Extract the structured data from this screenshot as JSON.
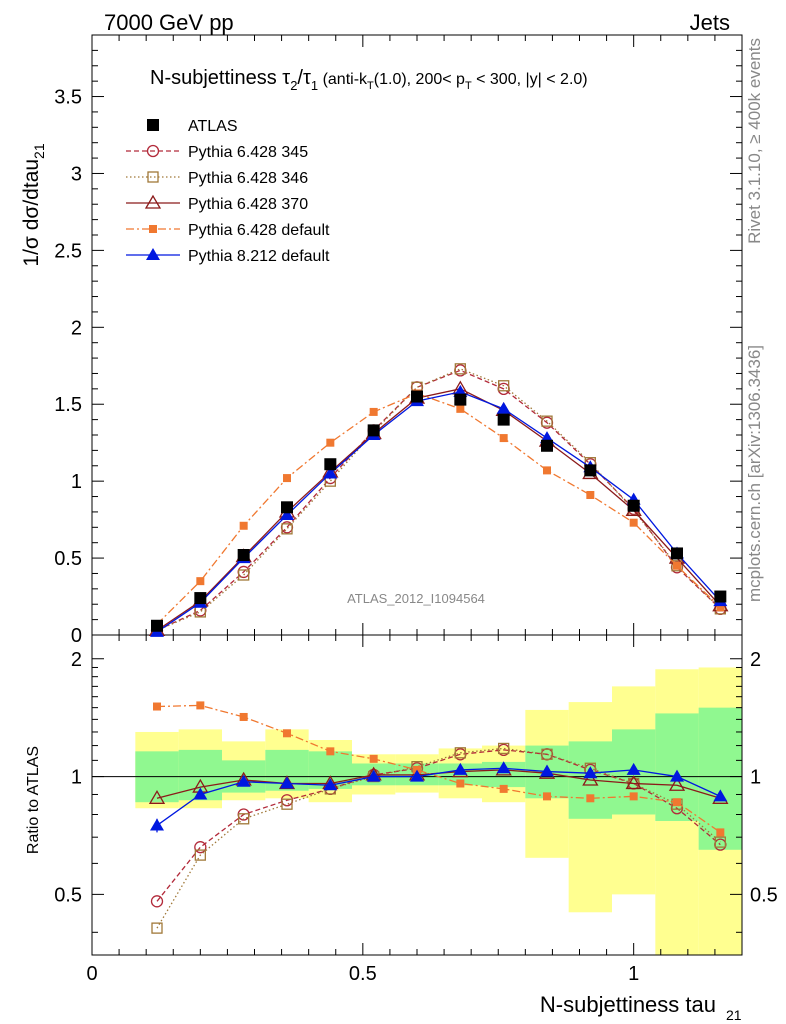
{
  "header": {
    "left": "7000 GeV pp",
    "right": "Jets"
  },
  "side_text": {
    "rivet": "Rivet 3.1.10, ≥ 400k events",
    "mcplots": "mcplots.cern.ch [arXiv:1306.3436]"
  },
  "watermark": "ATLAS_2012_I1094564",
  "title": {
    "main": "N-subjettiness τ",
    "sub2": "2",
    "slash": "/τ",
    "sub1": "1",
    "cond_a": " (anti-k",
    "cond_T": "T",
    "cond_b": "(1.0), 200< p",
    "cond_T2": "T",
    "cond_c": " < 300, |y| < 2.0)"
  },
  "axes": {
    "ylabel_top": "1/σ dσ/dtau",
    "ylabel_top_sub": "21",
    "ylabel_bottom": "Ratio to ATLAS",
    "xlabel": "N-subjettiness tau",
    "xlabel_sub": "21"
  },
  "colors": {
    "atlas": "#000000",
    "p345": "#b22a3a",
    "p346": "#a07838",
    "p370": "#8b1a1a",
    "p6def": "#f07830",
    "p8def": "#0018e0",
    "band_inner": "#90f890",
    "band_outer": "#ffff90"
  },
  "chart_data": {
    "type": "line",
    "title": "N-subjettiness τ2/τ1 (anti-kT(1.0), 200< pT < 300, |y| < 2.0)",
    "xlabel": "N-subjettiness tau21",
    "ylabel": "1/σ dσ/dtau21",
    "xlim": [
      0,
      1.2
    ],
    "ylim": [
      0,
      3.9
    ],
    "ratio_ylim": [
      0.35,
      2.3
    ],
    "x_ticks": [
      "0",
      "0.5",
      "1"
    ],
    "x_tick_values": [
      0,
      0.5,
      1
    ],
    "y_ticks": [
      "0",
      "0.5",
      "1",
      "1.5",
      "2",
      "2.5",
      "3",
      "3.5"
    ],
    "y_tick_values": [
      0,
      0.5,
      1,
      1.5,
      2,
      2.5,
      3,
      3.5
    ],
    "ratio_ticks": [
      "0.5",
      "1",
      "2"
    ],
    "ratio_tick_values": [
      0.5,
      1,
      2
    ],
    "x": [
      0.12,
      0.2,
      0.28,
      0.36,
      0.44,
      0.52,
      0.6,
      0.68,
      0.76,
      0.84,
      0.92,
      1.0,
      1.08,
      1.16
    ],
    "bin_edges": [
      0.08,
      0.16,
      0.24,
      0.32,
      0.4,
      0.48,
      0.56,
      0.64,
      0.72,
      0.8,
      0.88,
      0.96,
      1.04,
      1.12,
      1.2
    ],
    "series": [
      {
        "name": "ATLAS",
        "style": "atlas",
        "values": [
          0.06,
          0.24,
          0.52,
          0.83,
          1.11,
          1.33,
          1.55,
          1.53,
          1.4,
          1.23,
          1.07,
          0.84,
          0.53,
          0.25
        ],
        "ratio": [
          1,
          1,
          1,
          1,
          1,
          1,
          1,
          1,
          1,
          1,
          1,
          1,
          1,
          1
        ]
      },
      {
        "name": "Pythia 6.428 345",
        "style": "p345",
        "values": [
          0.03,
          0.16,
          0.41,
          0.7,
          1.02,
          1.33,
          1.61,
          1.72,
          1.6,
          1.38,
          1.11,
          0.82,
          0.44,
          0.17
        ],
        "ratio": [
          0.48,
          0.66,
          0.8,
          0.87,
          0.93,
          1.01,
          1.05,
          1.14,
          1.17,
          1.14,
          1.04,
          0.96,
          0.83,
          0.67
        ]
      },
      {
        "name": "Pythia 6.428 346",
        "style": "p346",
        "values": [
          0.03,
          0.15,
          0.39,
          0.69,
          1.0,
          1.32,
          1.61,
          1.73,
          1.62,
          1.39,
          1.12,
          0.81,
          0.45,
          0.17
        ],
        "ratio": [
          0.41,
          0.63,
          0.78,
          0.85,
          0.93,
          1.0,
          1.06,
          1.15,
          1.18,
          1.14,
          1.05,
          0.96,
          0.85,
          0.68
        ]
      },
      {
        "name": "Pythia 6.428 370",
        "style": "p370",
        "values": [
          0.03,
          0.22,
          0.51,
          0.8,
          1.06,
          1.31,
          1.54,
          1.6,
          1.46,
          1.26,
          1.05,
          0.81,
          0.5,
          0.19
        ],
        "ratio": [
          0.88,
          0.94,
          0.98,
          0.96,
          0.96,
          1.01,
          1.01,
          1.03,
          1.04,
          1.02,
          0.98,
          0.96,
          0.95,
          0.88
        ]
      },
      {
        "name": "Pythia 6.428 default",
        "style": "p6def",
        "values": [
          0.07,
          0.35,
          0.71,
          1.02,
          1.25,
          1.45,
          1.57,
          1.47,
          1.28,
          1.07,
          0.91,
          0.73,
          0.45,
          0.18
        ],
        "ratio": [
          1.51,
          1.52,
          1.42,
          1.29,
          1.16,
          1.11,
          1.04,
          0.96,
          0.93,
          0.89,
          0.88,
          0.89,
          0.86,
          0.72
        ]
      },
      {
        "name": "Pythia 8.212 default",
        "style": "p8def",
        "values": [
          0.02,
          0.21,
          0.5,
          0.78,
          1.05,
          1.3,
          1.52,
          1.58,
          1.47,
          1.28,
          1.09,
          0.88,
          0.53,
          0.22
        ],
        "ratio": [
          0.75,
          0.9,
          0.97,
          0.96,
          0.95,
          1.0,
          1.0,
          1.04,
          1.05,
          1.03,
          1.02,
          1.04,
          1.0,
          0.89
        ]
      }
    ],
    "band_inner": [
      [
        0.86,
        1.16
      ],
      [
        0.87,
        1.17
      ],
      [
        0.91,
        1.1
      ],
      [
        0.92,
        1.17
      ],
      [
        0.93,
        1.16
      ],
      [
        0.95,
        1.08
      ],
      [
        0.95,
        1.08
      ],
      [
        0.95,
        1.08
      ],
      [
        0.94,
        1.09
      ],
      [
        0.88,
        1.2
      ],
      [
        0.78,
        1.23
      ],
      [
        0.8,
        1.32
      ],
      [
        0.77,
        1.45
      ],
      [
        0.65,
        1.5
      ]
    ],
    "band_outer": [
      [
        0.83,
        1.3
      ],
      [
        0.83,
        1.32
      ],
      [
        0.87,
        1.23
      ],
      [
        0.88,
        1.32
      ],
      [
        0.86,
        1.24
      ],
      [
        0.9,
        1.14
      ],
      [
        0.91,
        1.14
      ],
      [
        0.88,
        1.18
      ],
      [
        0.86,
        1.2
      ],
      [
        0.62,
        1.48
      ],
      [
        0.45,
        1.55
      ],
      [
        0.5,
        1.7
      ],
      [
        0.35,
        1.88
      ],
      [
        0.35,
        1.9
      ]
    ],
    "legend_position": "top-left"
  }
}
